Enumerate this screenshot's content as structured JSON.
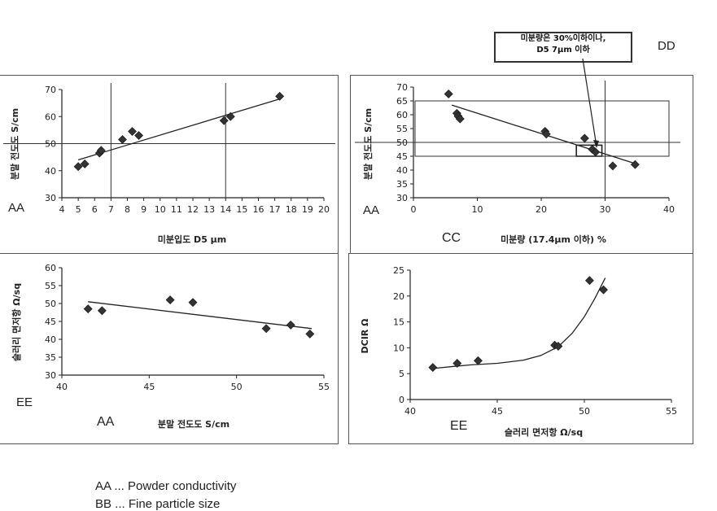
{
  "codes": {
    "tl": "AA",
    "tr": "AA",
    "tr_x": "CC",
    "tr_callout": "DD",
    "bl": "EE",
    "bl_x": "AA",
    "br": "EE"
  },
  "callout": {
    "line1": "미분량은 30%이하이나,",
    "line2": "D5 7μm 이하"
  },
  "legend": [
    "AA ... Powder conductivity",
    "BB ... Fine particle size"
  ],
  "accent": "#222222",
  "chart_data": [
    {
      "type": "scatter",
      "id": "chart-d5",
      "xlabel": "미분입도 D5 μm",
      "ylabel": "분말 전도도 S/cm",
      "xlim": [
        4,
        20
      ],
      "ylim": [
        30,
        70
      ],
      "xticks": [
        4,
        5,
        6,
        7,
        8,
        9,
        10,
        11,
        12,
        13,
        14,
        15,
        16,
        17,
        18,
        19,
        20
      ],
      "yticks": [
        30,
        40,
        50,
        60,
        70
      ],
      "points": [
        [
          5.0,
          41.5
        ],
        [
          5.4,
          42.5
        ],
        [
          6.3,
          46.5
        ],
        [
          6.4,
          47.5
        ],
        [
          7.7,
          51.5
        ],
        [
          8.3,
          54.5
        ],
        [
          8.7,
          53.0
        ],
        [
          13.9,
          58.5
        ],
        [
          14.3,
          60.0
        ],
        [
          17.3,
          67.5
        ]
      ],
      "trendline": [
        [
          5.0,
          44.0
        ],
        [
          17.3,
          66.5
        ]
      ],
      "ref_x": [
        7,
        14
      ],
      "ref_y": [
        50
      ]
    },
    {
      "type": "scatter",
      "id": "chart-fines",
      "xlabel": "미분량 (17.4μm 이하) %",
      "ylabel": "분말 전도도 S/cm",
      "xlim": [
        0,
        40
      ],
      "ylim": [
        30,
        70
      ],
      "xticks": [
        0,
        10,
        20,
        30,
        40
      ],
      "yticks": [
        30,
        35,
        40,
        45,
        50,
        55,
        60,
        65,
        70
      ],
      "points": [
        [
          5.5,
          67.5
        ],
        [
          6.8,
          60.5
        ],
        [
          7.0,
          59.5
        ],
        [
          7.3,
          58.5
        ],
        [
          20.6,
          54.0
        ],
        [
          20.8,
          53.0
        ],
        [
          26.8,
          51.5
        ],
        [
          28.0,
          47.5
        ],
        [
          28.5,
          46.5
        ],
        [
          31.2,
          41.5
        ],
        [
          34.7,
          42.0
        ]
      ],
      "trendline": [
        [
          6.0,
          63.5
        ],
        [
          34.5,
          42.5
        ]
      ],
      "ref_x": [
        30
      ],
      "ref_y": [
        50
      ],
      "highlight_box": [
        [
          25.5,
          45.0
        ],
        [
          29.5,
          49.0
        ]
      ]
    },
    {
      "type": "scatter",
      "id": "chart-resistance",
      "xlabel": "분말 전도도 S/cm",
      "ylabel": "슬러리 면저항 Ω/sq",
      "xlim": [
        40,
        55
      ],
      "ylim": [
        30,
        60
      ],
      "xticks": [
        40,
        45,
        50,
        55
      ],
      "yticks": [
        30,
        35,
        40,
        45,
        50,
        55,
        60
      ],
      "points": [
        [
          41.5,
          48.5
        ],
        [
          42.3,
          48.0
        ],
        [
          46.2,
          51.0
        ],
        [
          47.5,
          50.3
        ],
        [
          51.7,
          43.0
        ],
        [
          53.1,
          44.0
        ],
        [
          54.2,
          41.5
        ]
      ],
      "trendline": [
        [
          41.5,
          50.5
        ],
        [
          54.3,
          43.0
        ]
      ]
    },
    {
      "type": "scatter",
      "id": "chart-dcir",
      "xlabel": "슬러리 면저항 Ω/sq",
      "ylabel": "DCIR Ω",
      "xlim": [
        40,
        55
      ],
      "ylim": [
        0,
        25
      ],
      "xticks": [
        40,
        45,
        50,
        55
      ],
      "yticks": [
        0,
        5,
        10,
        15,
        20,
        25
      ],
      "points": [
        [
          41.3,
          6.2
        ],
        [
          42.7,
          7.0
        ],
        [
          43.9,
          7.5
        ],
        [
          48.3,
          10.5
        ],
        [
          48.5,
          10.3
        ],
        [
          50.3,
          23.0
        ],
        [
          51.1,
          21.2
        ]
      ],
      "trendline": [
        [
          41.3,
          6.0
        ],
        [
          42.5,
          6.4
        ],
        [
          43.5,
          6.7
        ],
        [
          45.0,
          7.0
        ],
        [
          46.5,
          7.6
        ],
        [
          47.5,
          8.5
        ],
        [
          48.5,
          10.2
        ],
        [
          49.3,
          12.8
        ],
        [
          50.0,
          16.0
        ],
        [
          50.6,
          19.5
        ],
        [
          51.2,
          23.5
        ]
      ]
    }
  ]
}
